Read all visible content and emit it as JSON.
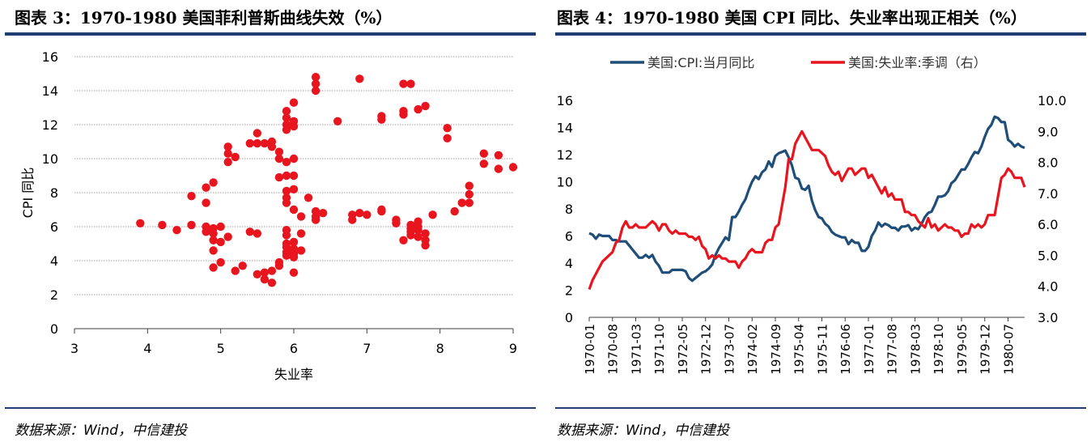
{
  "left_panel": {
    "title": "图表 3：1970-1980 美国菲利普斯曲线失效（%）",
    "source": "数据来源：Wind，中信建投"
  },
  "right_panel": {
    "title": "图表 4：1970-1980 美国 CPI 同比、失业率出现正相关（%）",
    "source": "数据来源：Wind，中信建投"
  },
  "colors": {
    "navy": "#1d3d73",
    "cpi": "#1f4e79",
    "red": "#e8141e",
    "grid": "#808080"
  },
  "chart_data": [
    {
      "type": "scatter",
      "title": "1970-1980 美国菲利普斯曲线失效（%）",
      "xlabel": "失业率",
      "ylabel": "CPI 同比",
      "xlim": [
        3,
        9
      ],
      "ylim": [
        0,
        16
      ],
      "xticks": [
        "3",
        "4",
        "5",
        "6",
        "7",
        "8",
        "9"
      ],
      "yticks": [
        "0",
        "2",
        "4",
        "6",
        "8",
        "10",
        "12",
        "14",
        "16"
      ],
      "points": [
        [
          3.9,
          6.2
        ],
        [
          4.2,
          6.1
        ],
        [
          4.4,
          5.8
        ],
        [
          4.6,
          6.1
        ],
        [
          4.6,
          7.8
        ],
        [
          4.8,
          8.3
        ],
        [
          4.8,
          7.4
        ],
        [
          4.8,
          6.0
        ],
        [
          4.8,
          5.7
        ],
        [
          4.9,
          5.9
        ],
        [
          4.9,
          5.6
        ],
        [
          4.9,
          5.2
        ],
        [
          5.0,
          6.0
        ],
        [
          4.9,
          4.6
        ],
        [
          4.9,
          3.6
        ],
        [
          5.0,
          3.9
        ],
        [
          5.0,
          5.1
        ],
        [
          5.1,
          5.4
        ],
        [
          4.9,
          8.6
        ],
        [
          5.1,
          9.8
        ],
        [
          5.1,
          10.3
        ],
        [
          5.1,
          10.7
        ],
        [
          5.2,
          10.1
        ],
        [
          5.2,
          3.4
        ],
        [
          5.3,
          3.7
        ],
        [
          5.4,
          5.7
        ],
        [
          5.5,
          5.6
        ],
        [
          5.5,
          3.2
        ],
        [
          5.6,
          3.3
        ],
        [
          5.6,
          2.9
        ],
        [
          5.7,
          3.4
        ],
        [
          5.7,
          2.7
        ],
        [
          5.8,
          3.7
        ],
        [
          5.8,
          3.9
        ],
        [
          5.5,
          11.5
        ],
        [
          5.4,
          10.9
        ],
        [
          5.5,
          10.9
        ],
        [
          5.6,
          10.9
        ],
        [
          5.7,
          11.0
        ],
        [
          5.7,
          10.7
        ],
        [
          5.8,
          10.4
        ],
        [
          5.8,
          10.0
        ],
        [
          5.8,
          8.9
        ],
        [
          5.9,
          9.8
        ],
        [
          5.9,
          9.0
        ],
        [
          5.9,
          8.1
        ],
        [
          5.9,
          7.7
        ],
        [
          5.9,
          7.4
        ],
        [
          5.9,
          11.7
        ],
        [
          5.9,
          12.4
        ],
        [
          5.9,
          12.0
        ],
        [
          5.9,
          12.8
        ],
        [
          6.0,
          13.3
        ],
        [
          6.0,
          12.2
        ],
        [
          6.0,
          11.9
        ],
        [
          6.0,
          10.0
        ],
        [
          6.0,
          9.0
        ],
        [
          6.0,
          8.2
        ],
        [
          6.0,
          7.0
        ],
        [
          6.1,
          6.6
        ],
        [
          5.9,
          5.0
        ],
        [
          5.9,
          4.8
        ],
        [
          5.9,
          4.5
        ],
        [
          5.9,
          4.3
        ],
        [
          5.9,
          5.5
        ],
        [
          5.9,
          5.8
        ],
        [
          6.0,
          5.1
        ],
        [
          6.0,
          4.7
        ],
        [
          6.0,
          4.4
        ],
        [
          6.0,
          4.2
        ],
        [
          6.0,
          3.3
        ],
        [
          6.1,
          5.6
        ],
        [
          6.1,
          4.6
        ],
        [
          6.2,
          7.7
        ],
        [
          6.3,
          6.9
        ],
        [
          6.3,
          6.4
        ],
        [
          6.3,
          6.6
        ],
        [
          6.4,
          6.8
        ],
        [
          6.3,
          14.8
        ],
        [
          6.3,
          14.4
        ],
        [
          6.3,
          14.0
        ],
        [
          6.6,
          12.2
        ],
        [
          6.9,
          14.7
        ],
        [
          6.8,
          6.4
        ],
        [
          6.8,
          6.7
        ],
        [
          6.9,
          6.8
        ],
        [
          7.0,
          6.7
        ],
        [
          7.2,
          6.9
        ],
        [
          7.2,
          7.0
        ],
        [
          7.2,
          12.3
        ],
        [
          7.2,
          12.5
        ],
        [
          7.4,
          6.4
        ],
        [
          7.4,
          6.2
        ],
        [
          7.5,
          5.2
        ],
        [
          7.5,
          12.6
        ],
        [
          7.5,
          12.8
        ],
        [
          7.5,
          14.4
        ],
        [
          7.6,
          14.4
        ],
        [
          7.6,
          6.1
        ],
        [
          7.6,
          5.9
        ],
        [
          7.6,
          5.7
        ],
        [
          7.6,
          5.5
        ],
        [
          7.7,
          5.8
        ],
        [
          7.7,
          6.0
        ],
        [
          7.7,
          6.3
        ],
        [
          7.7,
          5.4
        ],
        [
          7.8,
          5.6
        ],
        [
          7.8,
          5.2
        ],
        [
          7.8,
          4.9
        ],
        [
          7.7,
          12.9
        ],
        [
          7.8,
          13.1
        ],
        [
          7.9,
          6.7
        ],
        [
          8.1,
          11.8
        ],
        [
          8.1,
          11.2
        ],
        [
          8.2,
          6.9
        ],
        [
          8.3,
          7.4
        ],
        [
          8.4,
          7.4
        ],
        [
          8.4,
          7.9
        ],
        [
          8.4,
          8.4
        ],
        [
          8.6,
          10.3
        ],
        [
          8.6,
          9.7
        ],
        [
          8.8,
          10.2
        ],
        [
          8.8,
          9.4
        ],
        [
          9.0,
          9.5
        ]
      ]
    },
    {
      "type": "line",
      "title": "1970-1980 美国 CPI 同比、失业率出现正相关（%）",
      "xticks": [
        "1970-01",
        "1970-08",
        "1971-03",
        "1971-10",
        "1972-05",
        "1972-12",
        "1973-07",
        "1974-02",
        "1974-09",
        "1975-04",
        "1975-11",
        "1976-06",
        "1977-01",
        "1977-08",
        "1978-03",
        "1978-10",
        "1979-05",
        "1979-12",
        "1980-07"
      ],
      "x_start": "1970-01",
      "x_end": "1980-12",
      "ylim_left": [
        0,
        16
      ],
      "yticks_left": [
        "0",
        "2",
        "4",
        "6",
        "8",
        "10",
        "12",
        "14",
        "16"
      ],
      "ylim_right": [
        3.0,
        10.0
      ],
      "yticks_right": [
        "3.0",
        "4.0",
        "5.0",
        "6.0",
        "7.0",
        "8.0",
        "9.0",
        "10.0"
      ],
      "series": [
        {
          "name": "美国:CPI:当月同比",
          "axis": "left",
          "color": "#1f4e79",
          "values": [
            6.2,
            6.1,
            5.8,
            6.1,
            6.0,
            6.0,
            6.0,
            5.7,
            5.7,
            5.6,
            5.6,
            5.6,
            5.3,
            5.0,
            4.7,
            4.4,
            4.4,
            4.6,
            4.4,
            4.6,
            4.1,
            3.8,
            3.3,
            3.3,
            3.3,
            3.5,
            3.5,
            3.5,
            3.5,
            3.4,
            2.9,
            2.7,
            2.9,
            3.1,
            3.3,
            3.4,
            3.6,
            3.9,
            4.6,
            5.1,
            5.5,
            5.9,
            5.7,
            7.4,
            7.4,
            7.8,
            8.3,
            8.7,
            9.4,
            10.0,
            10.4,
            10.2,
            10.7,
            10.9,
            11.5,
            11.1,
            11.9,
            12.1,
            12.2,
            12.3,
            11.8,
            11.2,
            10.3,
            10.2,
            9.5,
            9.4,
            9.7,
            8.6,
            7.9,
            7.4,
            7.3,
            6.9,
            6.7,
            6.3,
            6.1,
            6.0,
            5.9,
            5.9,
            5.4,
            5.7,
            5.5,
            5.5,
            4.9,
            4.9,
            5.2,
            6.0,
            6.4,
            7.0,
            6.7,
            6.9,
            6.8,
            6.6,
            6.6,
            6.4,
            6.7,
            6.7,
            6.8,
            6.4,
            6.6,
            6.5,
            6.9,
            7.4,
            7.7,
            7.8,
            8.3,
            8.9,
            8.9,
            9.0,
            9.3,
            9.9,
            10.1,
            10.5,
            10.9,
            10.9,
            11.3,
            11.8,
            12.2,
            12.1,
            12.6,
            13.3,
            13.9,
            14.2,
            14.8,
            14.7,
            14.4,
            14.4,
            13.1,
            12.9,
            12.6,
            12.8,
            12.6,
            12.5
          ]
        },
        {
          "name": "美国:失业率:季调（右）",
          "axis": "right",
          "color": "#e8141e",
          "values": [
            3.9,
            4.2,
            4.4,
            4.6,
            4.8,
            4.9,
            5.0,
            5.1,
            5.4,
            5.5,
            5.9,
            6.1,
            5.9,
            5.9,
            6.0,
            5.9,
            5.9,
            5.9,
            6.0,
            6.1,
            6.0,
            5.8,
            6.0,
            6.0,
            5.8,
            5.7,
            5.8,
            5.7,
            5.7,
            5.7,
            5.6,
            5.6,
            5.5,
            5.6,
            5.3,
            5.2,
            4.9,
            5.0,
            4.9,
            5.0,
            4.9,
            4.9,
            4.8,
            4.8,
            4.8,
            4.6,
            4.8,
            4.9,
            5.1,
            5.2,
            5.1,
            5.1,
            5.1,
            5.4,
            5.5,
            5.5,
            5.9,
            6.0,
            6.6,
            7.2,
            8.1,
            8.1,
            8.6,
            8.8,
            9.0,
            8.8,
            8.6,
            8.4,
            8.4,
            8.4,
            8.3,
            8.2,
            7.9,
            7.7,
            7.6,
            7.7,
            7.4,
            7.6,
            7.8,
            7.8,
            7.6,
            7.7,
            7.8,
            7.8,
            7.5,
            7.6,
            7.4,
            7.2,
            7.0,
            7.2,
            6.9,
            7.0,
            6.8,
            6.8,
            6.8,
            6.4,
            6.4,
            6.3,
            6.3,
            6.1,
            6.0,
            5.9,
            6.2,
            5.9,
            6.0,
            5.8,
            5.9,
            6.0,
            5.9,
            5.9,
            5.8,
            5.8,
            5.6,
            5.7,
            5.7,
            6.0,
            5.9,
            6.0,
            5.9,
            6.0,
            6.3,
            6.3,
            6.3,
            6.9,
            7.5,
            7.6,
            7.8,
            7.7,
            7.5,
            7.5,
            7.5,
            7.2
          ]
        }
      ]
    }
  ]
}
